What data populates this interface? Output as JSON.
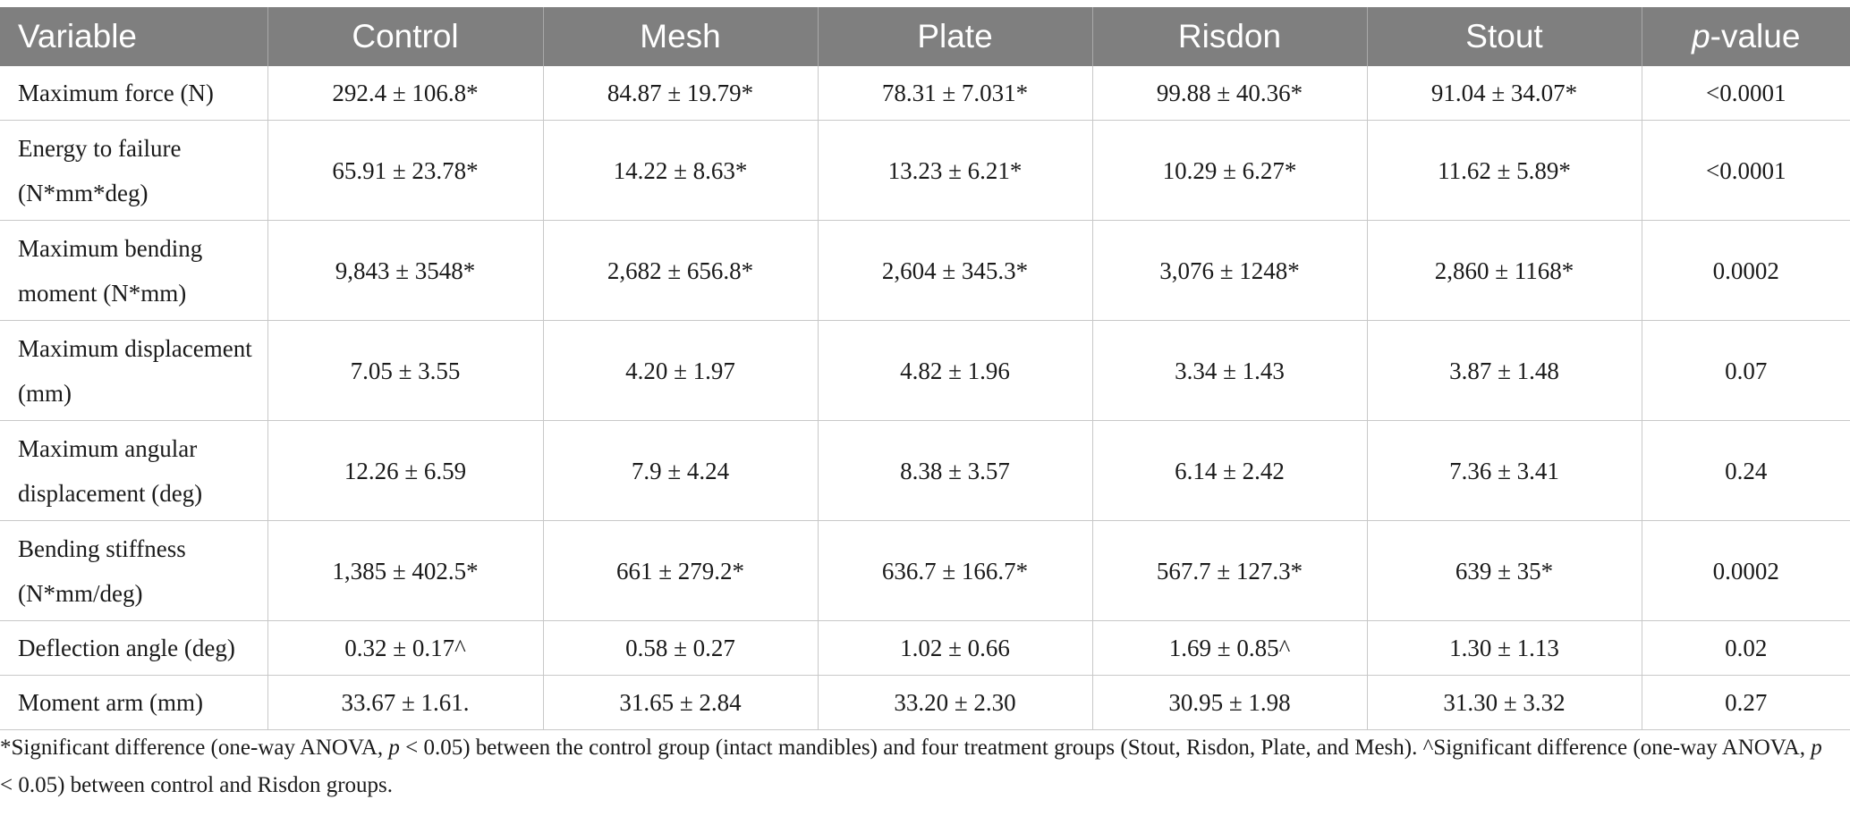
{
  "table": {
    "headers": [
      "Variable",
      "Control",
      "Mesh",
      "Plate",
      "Risdon",
      "Stout"
    ],
    "pvalue_header": {
      "p": "p",
      "rest": "-value"
    },
    "rows": [
      {
        "variable": "Maximum force (N)",
        "control": "292.4 ± 106.8*",
        "mesh": "84.87 ± 19.79*",
        "plate": "78.31 ± 7.031*",
        "risdon": "99.88 ± 40.36*",
        "stout": "91.04 ± 34.07*",
        "pvalue": "<0.0001"
      },
      {
        "variable": "Energy to failure (N*mm*deg)",
        "control": "65.91 ± 23.78*",
        "mesh": "14.22 ± 8.63*",
        "plate": "13.23 ± 6.21*",
        "risdon": "10.29 ± 6.27*",
        "stout": "11.62 ± 5.89*",
        "pvalue": "<0.0001"
      },
      {
        "variable": "Maximum bending moment (N*mm)",
        "control": "9,843 ± 3548*",
        "mesh": "2,682 ± 656.8*",
        "plate": "2,604 ± 345.3*",
        "risdon": "3,076 ± 1248*",
        "stout": "2,860 ± 1168*",
        "pvalue": "0.0002"
      },
      {
        "variable": "Maximum displacement (mm)",
        "control": "7.05 ± 3.55",
        "mesh": "4.20 ± 1.97",
        "plate": "4.82 ± 1.96",
        "risdon": "3.34 ± 1.43",
        "stout": "3.87 ± 1.48",
        "pvalue": "0.07"
      },
      {
        "variable": "Maximum angular displacement (deg)",
        "control": "12.26 ± 6.59",
        "mesh": "7.9 ± 4.24",
        "plate": "8.38 ± 3.57",
        "risdon": "6.14 ± 2.42",
        "stout": "7.36 ± 3.41",
        "pvalue": "0.24"
      },
      {
        "variable": "Bending stiffness (N*mm/deg)",
        "control": "1,385 ± 402.5*",
        "mesh": "661 ± 279.2*",
        "plate": "636.7 ± 166.7*",
        "risdon": "567.7 ± 127.3*",
        "stout": "639 ± 35*",
        "pvalue": "0.0002"
      },
      {
        "variable": "Deflection angle (deg)",
        "control": "0.32 ± 0.17^",
        "mesh": "0.58 ± 0.27",
        "plate": "1.02 ± 0.66",
        "risdon": "1.69 ± 0.85^",
        "stout": "1.30 ± 1.13",
        "pvalue": "0.02"
      },
      {
        "variable": "Moment arm (mm)",
        "control": "33.67 ± 1.61.",
        "mesh": "31.65 ± 2.84",
        "plate": "33.20 ± 2.30",
        "risdon": "30.95 ± 1.98",
        "stout": "31.30 ± 3.32",
        "pvalue": "0.27"
      }
    ]
  },
  "footnote": {
    "part1": "*Significant difference (one-way ANOVA, ",
    "p1": "p",
    "part2": " < 0.05) between the control group (intact mandibles) and four treatment groups (Stout, Risdon, Plate, and Mesh). ^Significant difference (one-way ANOVA, ",
    "p2": "p",
    "part3": " < 0.05) between control and Risdon groups."
  },
  "colors": {
    "header_bg": "#7f7f7f",
    "header_text": "#ffffff",
    "grid": "#c8c8c8"
  }
}
